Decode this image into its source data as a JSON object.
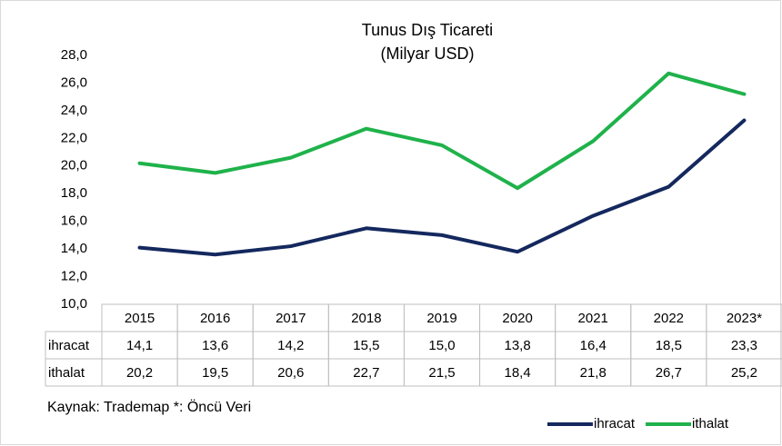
{
  "chart_data": {
    "type": "line",
    "title": "Tunus Dış Ticareti",
    "subtitle": "(Milyar USD)",
    "categories": [
      "2015",
      "2016",
      "2017",
      "2018",
      "2019",
      "2020",
      "2021",
      "2022",
      "2023*"
    ],
    "series": [
      {
        "name": "ihracat",
        "color": "#14285e",
        "values": [
          14.1,
          13.6,
          14.2,
          15.5,
          15.0,
          13.8,
          16.4,
          18.5,
          23.3
        ],
        "value_labels": [
          "14,1",
          "13,6",
          "14,2",
          "15,5",
          "15,0",
          "13,8",
          "16,4",
          "18,5",
          "23,3"
        ]
      },
      {
        "name": "ithalat",
        "color": "#1fb24b",
        "values": [
          20.2,
          19.5,
          20.6,
          22.7,
          21.5,
          18.4,
          21.8,
          26.7,
          25.2
        ],
        "value_labels": [
          "20,2",
          "19,5",
          "20,6",
          "22,7",
          "21,5",
          "18,4",
          "21,8",
          "26,7",
          "25,2"
        ]
      }
    ],
    "ylim": [
      10,
      28
    ],
    "yticks": [
      {
        "value": 10,
        "label": "10,0"
      },
      {
        "value": 12,
        "label": "12,0"
      },
      {
        "value": 14,
        "label": "14,0"
      },
      {
        "value": 16,
        "label": "16,0"
      },
      {
        "value": 18,
        "label": "18,0"
      },
      {
        "value": 20,
        "label": "20,0"
      },
      {
        "value": 22,
        "label": "22,0"
      },
      {
        "value": 24,
        "label": "24,0"
      },
      {
        "value": 26,
        "label": "26,0"
      },
      {
        "value": 28,
        "label": "28,0"
      }
    ],
    "grid": false,
    "legend": "bottom-right",
    "footnote": "Kaynak: Trademap *: Öncü Veri"
  }
}
